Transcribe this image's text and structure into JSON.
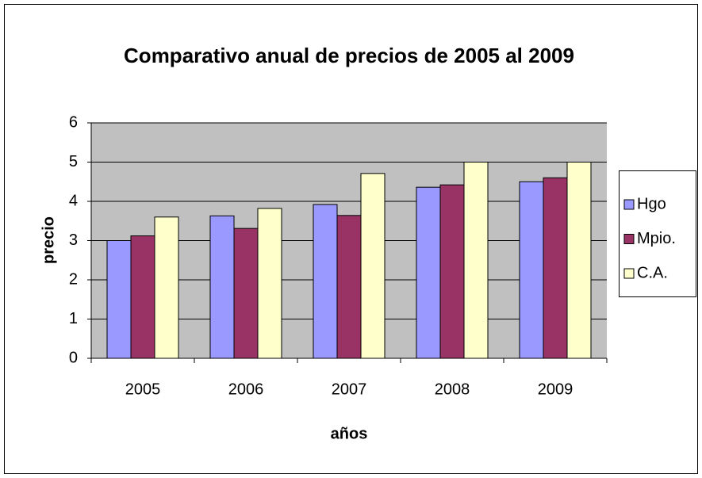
{
  "chart_data": {
    "type": "bar",
    "title": "Comparativo anual de precios de 2005 al 2009",
    "x_label": "años",
    "y_label": "precio",
    "categories": [
      "2005",
      "2006",
      "2007",
      "2008",
      "2009"
    ],
    "series": [
      {
        "name": "Hgo",
        "color": "#9999ff",
        "values": [
          3.0,
          3.63,
          3.92,
          4.36,
          4.5
        ]
      },
      {
        "name": "Mpio.",
        "color": "#993366",
        "values": [
          3.12,
          3.31,
          3.64,
          4.42,
          4.6
        ]
      },
      {
        "name": "C.A.",
        "color": "#ffffcc",
        "values": [
          3.6,
          3.82,
          4.71,
          5.0,
          5.0
        ]
      }
    ],
    "ylim": [
      0,
      6
    ],
    "yticks": [
      0,
      1,
      2,
      3,
      4,
      5,
      6
    ],
    "grid": true,
    "legend": "right"
  }
}
